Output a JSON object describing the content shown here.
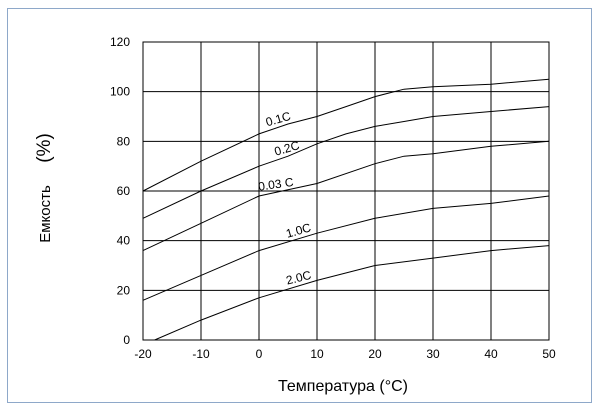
{
  "chart_data": {
    "type": "line",
    "title": "",
    "xlabel": "Температура (°C)",
    "ylabel": "Емкость",
    "ylabel_unit": "(%)",
    "xlim": [
      -20,
      50
    ],
    "ylim": [
      0,
      120
    ],
    "x_ticks": [
      "-20",
      "-10",
      "0",
      "10",
      "20",
      "30",
      "40",
      "50"
    ],
    "y_ticks": [
      "0",
      "20",
      "40",
      "60",
      "80",
      "100",
      "120"
    ],
    "grid": true,
    "series": [
      {
        "name": "0.1C",
        "x": [
          -20,
          -10,
          0,
          5,
          10,
          15,
          20,
          25,
          30,
          40,
          50
        ],
        "y": [
          60,
          72,
          83,
          87,
          90,
          94,
          98,
          101,
          102,
          103,
          105
        ]
      },
      {
        "name": "0.2C",
        "x": [
          -20,
          -10,
          0,
          5,
          10,
          15,
          20,
          25,
          30,
          40,
          50
        ],
        "y": [
          49,
          60,
          70,
          74,
          79,
          83,
          86,
          88,
          90,
          92,
          94
        ]
      },
      {
        "name": "0.03 C",
        "x": [
          -20,
          -10,
          0,
          10,
          20,
          25,
          30,
          40,
          50
        ],
        "y": [
          36,
          47,
          58,
          63,
          71,
          74,
          75,
          78,
          80
        ]
      },
      {
        "name": "1.0C",
        "x": [
          -20,
          -10,
          0,
          10,
          20,
          30,
          40,
          50
        ],
        "y": [
          16,
          26,
          36,
          43,
          49,
          53,
          55,
          58
        ]
      },
      {
        "name": "2.0C",
        "x": [
          -18,
          -10,
          0,
          10,
          20,
          30,
          40,
          50
        ],
        "y": [
          0,
          8,
          17,
          24,
          30,
          33,
          36,
          38
        ]
      }
    ]
  }
}
